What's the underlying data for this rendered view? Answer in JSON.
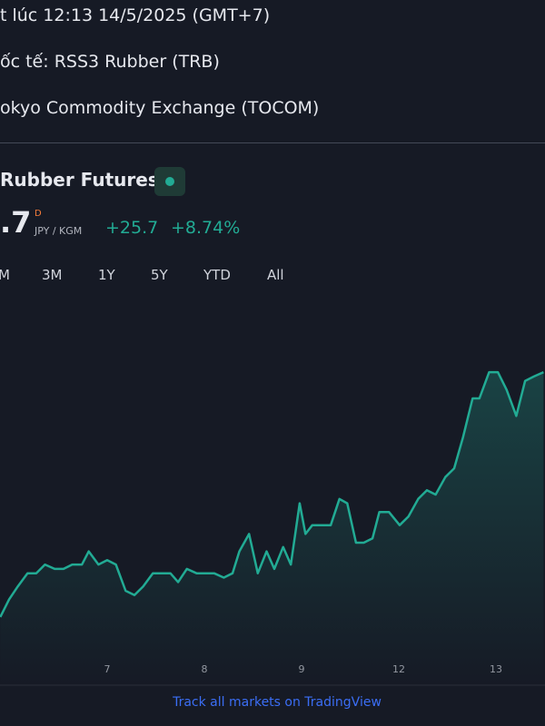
{
  "header": {
    "lines": [
      "t lúc 12:13 14/5/2025 (GMT+7)",
      "ốc tế: RSS3 Rubber (TRB)",
      "okyo Commodity Exchange (TOCOM)"
    ]
  },
  "widget": {
    "title": "Rubber Futures",
    "price": ".7",
    "flag": "D",
    "unit": "JPY / KGM",
    "change": "+25.7",
    "change_percent": "+8.74%",
    "ranges": [
      "M",
      "3M",
      "1Y",
      "5Y",
      "YTD",
      "All"
    ]
  },
  "chart_data": {
    "type": "line",
    "color": "#22ab94",
    "x": [
      -1.1,
      -1.01,
      -0.92,
      -0.82,
      -0.73,
      -0.64,
      -0.54,
      -0.45,
      -0.36,
      -0.26,
      -0.19,
      -0.09,
      0,
      0.09,
      0.19,
      0.28,
      0.37,
      0.47,
      0.56,
      0.65,
      0.73,
      0.82,
      0.92,
      1.01,
      1.1,
      1.2,
      1.29,
      1.36,
      1.46,
      1.55,
      1.64,
      1.72,
      1.81,
      1.89,
      1.98,
      2.04,
      2.11,
      2.21,
      2.3,
      2.39,
      2.47,
      2.56,
      2.64,
      2.73,
      2.8,
      2.9,
      3.01,
      3.1,
      3.2,
      3.29,
      3.38,
      3.48,
      3.57,
      3.66,
      3.76,
      3.83,
      3.93,
      4.02,
      4.11,
      4.21,
      4.3,
      4.39,
      4.49
    ],
    "values": [
      292,
      294,
      295.5,
      297,
      297,
      298,
      297.5,
      297.5,
      298,
      298,
      299.5,
      298,
      298.5,
      298,
      295,
      294.5,
      295.5,
      297,
      297,
      297,
      296,
      297.5,
      297,
      297,
      297,
      296.5,
      297,
      299.5,
      301.5,
      297,
      299.5,
      297.5,
      300,
      298,
      305,
      301.5,
      302.5,
      302.5,
      302.5,
      305.5,
      305,
      300.5,
      300.5,
      301,
      304,
      304,
      302.5,
      303.5,
      305.5,
      306.5,
      306,
      308,
      309,
      312.5,
      317,
      317,
      320,
      320,
      318,
      315,
      319,
      319.5,
      320
    ],
    "xlim": [
      -1.103,
      4.505
    ],
    "ylim": [
      284,
      328
    ],
    "xticks": [
      {
        "value": 0,
        "label": "7"
      },
      {
        "value": 1,
        "label": "8"
      },
      {
        "value": 2,
        "label": "9"
      },
      {
        "value": 3,
        "label": "12"
      },
      {
        "value": 4,
        "label": "13"
      }
    ]
  },
  "footer": "Track all markets on TradingView"
}
